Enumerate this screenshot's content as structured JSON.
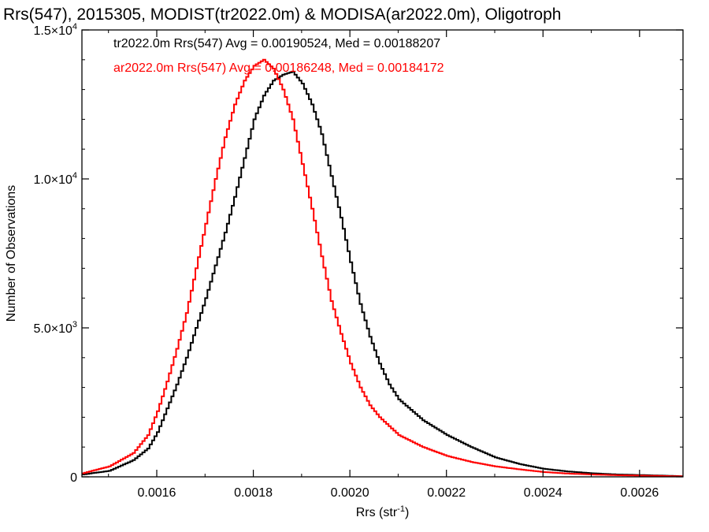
{
  "chart_data": {
    "type": "line",
    "title": "Rrs(547), 2015305, MODIST(tr2022.0m) & MODISA(ar2022.0m), Oligotroph",
    "xlabel": "Rrs (str",
    "xlabel_sup": "-1",
    "xlabel_close": ")",
    "ylabel": "Number of Observations",
    "xlim": [
      0.001445,
      0.00269
    ],
    "ylim": [
      0,
      15000
    ],
    "x_ticks": [
      {
        "value": 0.0016,
        "label": "0.0016"
      },
      {
        "value": 0.0018,
        "label": "0.0018"
      },
      {
        "value": 0.002,
        "label": "0.0020"
      },
      {
        "value": 0.0022,
        "label": "0.0022"
      },
      {
        "value": 0.0024,
        "label": "0.0024"
      },
      {
        "value": 0.0026,
        "label": "0.0026"
      }
    ],
    "y_ticks": [
      {
        "value": 0,
        "mant": "0",
        "exp": ""
      },
      {
        "value": 5000,
        "mant": "5.0×10",
        "exp": "3"
      },
      {
        "value": 10000,
        "mant": "1.0×10",
        "exp": "4"
      },
      {
        "value": 15000,
        "mant": "1.5×10",
        "exp": "4"
      }
    ],
    "annotations": [
      {
        "text": "tr2022.0m Rrs(547) Avg = 0.00190524, Med = 0.00188207",
        "color": "#000000"
      },
      {
        "text": "ar2022.0m Rrs(547) Avg = 0.00186248, Med = 0.00184172",
        "color": "#ff0000"
      }
    ],
    "series": [
      {
        "color": "#000000",
        "x": [
          0.001445,
          0.0015,
          0.00155,
          0.00158,
          0.0016,
          0.00162,
          0.00164,
          0.00166,
          0.00168,
          0.0017,
          0.00172,
          0.00174,
          0.00176,
          0.00178,
          0.0018,
          0.00182,
          0.00184,
          0.00186,
          0.00188,
          0.0019,
          0.00192,
          0.00194,
          0.00196,
          0.00198,
          0.002,
          0.00202,
          0.00204,
          0.00206,
          0.00208,
          0.0021,
          0.00215,
          0.0022,
          0.00225,
          0.0023,
          0.00235,
          0.0024,
          0.00245,
          0.0025,
          0.00255,
          0.0026,
          0.00269
        ],
        "y": [
          80,
          200,
          560,
          950,
          1500,
          2300,
          3100,
          4000,
          5000,
          6000,
          7100,
          8200,
          9400,
          10700,
          12000,
          12800,
          13300,
          13500,
          13600,
          13200,
          12500,
          11500,
          10100,
          8700,
          7200,
          5800,
          4700,
          3800,
          3100,
          2600,
          1900,
          1400,
          1000,
          650,
          430,
          270,
          180,
          120,
          80,
          60,
          20
        ]
      },
      {
        "color": "#ff0000",
        "x": [
          0.001445,
          0.0015,
          0.00155,
          0.00158,
          0.0016,
          0.00162,
          0.00164,
          0.00166,
          0.00168,
          0.0017,
          0.00172,
          0.00174,
          0.00176,
          0.00178,
          0.0018,
          0.00182,
          0.00184,
          0.00186,
          0.00188,
          0.0019,
          0.00192,
          0.00194,
          0.00196,
          0.00198,
          0.002,
          0.00202,
          0.00204,
          0.00206,
          0.00208,
          0.0021,
          0.00215,
          0.0022,
          0.00225,
          0.0023,
          0.00235,
          0.0024,
          0.00245,
          0.0025,
          0.00255,
          0.0026,
          0.00269
        ],
        "y": [
          120,
          350,
          800,
          1400,
          2200,
          3200,
          4300,
          5500,
          7000,
          8500,
          10000,
          11400,
          12500,
          13300,
          13800,
          14000,
          13700,
          13000,
          12000,
          10500,
          9000,
          7400,
          5900,
          4800,
          3800,
          3000,
          2400,
          2000,
          1700,
          1400,
          1000,
          700,
          500,
          350,
          250,
          160,
          110,
          80,
          55,
          40,
          15
        ]
      }
    ]
  }
}
